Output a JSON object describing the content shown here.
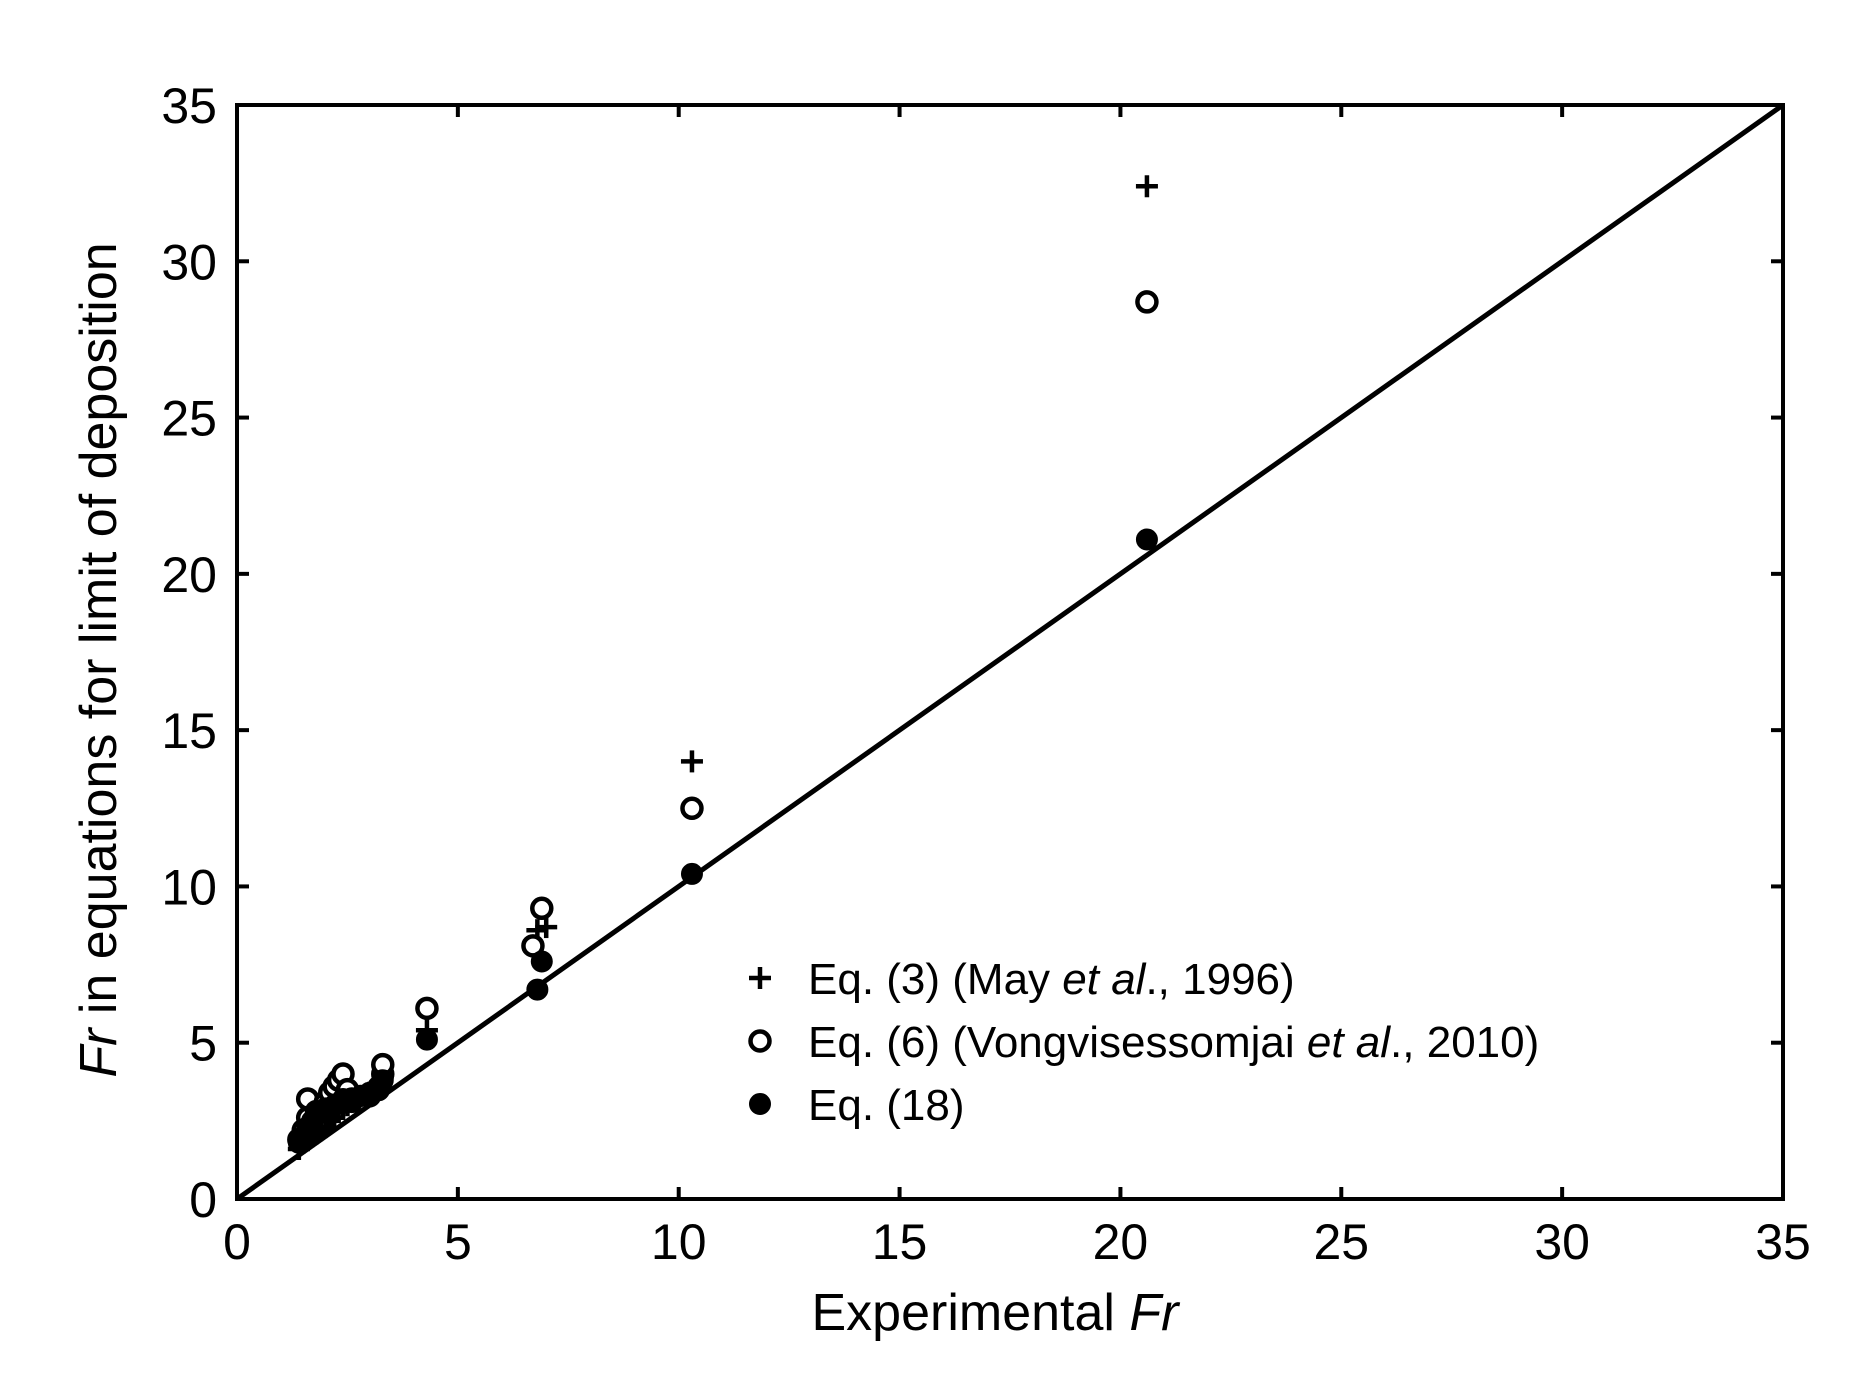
{
  "chart_data": {
    "type": "scatter",
    "title": "",
    "xlabel": {
      "prefix": "Experimental ",
      "italic": "Fr"
    },
    "ylabel": {
      "italic": "Fr",
      "suffix": " in equations for limit of deposition"
    },
    "xlim": [
      0,
      35
    ],
    "ylim": [
      0,
      35
    ],
    "xticks": [
      0,
      5,
      10,
      15,
      20,
      25,
      30,
      35
    ],
    "yticks": [
      0,
      5,
      10,
      15,
      20,
      25,
      30,
      35
    ],
    "grid": false,
    "legend_position": "lower-right",
    "reference_line": {
      "name": "1:1 line",
      "x": [
        0,
        35
      ],
      "y": [
        0,
        35
      ]
    },
    "series": [
      {
        "name": "Eq. (3) (May et al., 1996)",
        "label_parts": [
          {
            "text": "Eq. (3) (May ",
            "italic": false
          },
          {
            "text": "et al",
            "italic": true
          },
          {
            "text": "., 1996)",
            "italic": false
          }
        ],
        "marker": "plus",
        "points": [
          [
            1.4,
            1.6
          ],
          [
            1.5,
            1.8
          ],
          [
            1.6,
            1.9
          ],
          [
            1.7,
            2.0
          ],
          [
            1.8,
            2.1
          ],
          [
            1.9,
            2.2
          ],
          [
            2.0,
            2.3
          ],
          [
            2.1,
            2.5
          ],
          [
            2.2,
            2.6
          ],
          [
            2.3,
            2.8
          ],
          [
            2.4,
            2.9
          ],
          [
            2.5,
            3.0
          ],
          [
            2.6,
            3.2
          ],
          [
            2.8,
            3.3
          ],
          [
            3.0,
            3.4
          ],
          [
            3.3,
            3.9
          ],
          [
            4.3,
            5.4
          ],
          [
            6.8,
            8.6
          ],
          [
            7.0,
            8.7
          ],
          [
            10.3,
            14.0
          ],
          [
            20.6,
            32.4
          ]
        ]
      },
      {
        "name": "Eq. (6) (Vongvisessomjai et al., 2010)",
        "label_parts": [
          {
            "text": "Eq. (6) (Vongvisessomjai ",
            "italic": false
          },
          {
            "text": "et al",
            "italic": true
          },
          {
            "text": "., 2010)",
            "italic": false
          }
        ],
        "marker": "open-circle",
        "points": [
          [
            1.4,
            1.9
          ],
          [
            1.5,
            2.2
          ],
          [
            1.6,
            2.6
          ],
          [
            1.6,
            3.2
          ],
          [
            1.8,
            2.8
          ],
          [
            2.0,
            3.1
          ],
          [
            2.1,
            3.4
          ],
          [
            2.2,
            3.6
          ],
          [
            2.3,
            3.8
          ],
          [
            2.4,
            4.0
          ],
          [
            2.5,
            3.5
          ],
          [
            2.6,
            3.2
          ],
          [
            3.0,
            3.3
          ],
          [
            3.2,
            3.5
          ],
          [
            3.3,
            4.0
          ],
          [
            3.3,
            4.3
          ],
          [
            4.3,
            6.1
          ],
          [
            6.7,
            8.1
          ],
          [
            6.9,
            9.3
          ],
          [
            10.3,
            12.5
          ],
          [
            20.6,
            28.7
          ]
        ]
      },
      {
        "name": "Eq. (18)",
        "label_parts": [
          {
            "text": "Eq. (18)",
            "italic": false
          }
        ],
        "marker": "filled-circle",
        "points": [
          [
            1.4,
            1.8
          ],
          [
            1.5,
            2.0
          ],
          [
            1.6,
            2.3
          ],
          [
            1.7,
            2.5
          ],
          [
            1.8,
            2.7
          ],
          [
            2.0,
            2.9
          ],
          [
            2.2,
            3.0
          ],
          [
            2.4,
            3.2
          ],
          [
            2.6,
            3.1
          ],
          [
            2.8,
            3.3
          ],
          [
            3.0,
            3.4
          ],
          [
            3.2,
            3.6
          ],
          [
            3.3,
            3.8
          ],
          [
            4.3,
            5.1
          ],
          [
            6.8,
            6.7
          ],
          [
            6.9,
            7.6
          ],
          [
            10.3,
            10.4
          ],
          [
            20.6,
            21.1
          ]
        ]
      }
    ]
  }
}
